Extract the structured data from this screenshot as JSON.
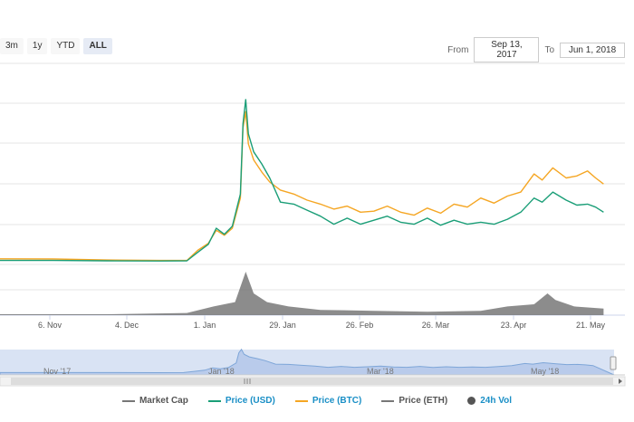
{
  "zoom": {
    "buttons": [
      "3m",
      "1y",
      "YTD",
      "ALL"
    ],
    "active": "ALL"
  },
  "range": {
    "from_label": "From",
    "from_value": "Sep 13, 2017",
    "to_label": "To",
    "to_value": "Jun 1, 2018"
  },
  "navigator": {
    "labels": [
      "Nov '17",
      "Jan '18",
      "Mar '18",
      "May '18"
    ]
  },
  "colors": {
    "usd": "#1a9e77",
    "btc": "#f5a623",
    "volume": "#555555",
    "navigator_fill": "#c9d7ef",
    "navigator_line": "#7ea6d8"
  },
  "chart_data": {
    "type": "line",
    "x_tick_labels": [
      "6. Nov",
      "4. Dec",
      "1. Jan",
      "29. Jan",
      "26. Feb",
      "26. Mar",
      "23. Apr",
      "21. May"
    ],
    "x_range": [
      "2017-10-10",
      "2018-06-01"
    ],
    "series": [
      {
        "name": "Price (USD)",
        "points": [
          [
            0,
            0.2
          ],
          [
            20,
            0.2
          ],
          [
            40,
            0.18
          ],
          [
            60,
            0.17
          ],
          [
            70,
            0.18
          ],
          [
            74,
            0.6
          ],
          [
            78,
            1.0
          ],
          [
            81,
            1.8
          ],
          [
            84,
            1.5
          ],
          [
            87,
            1.9
          ],
          [
            90,
            3.5
          ],
          [
            91,
            7.0
          ],
          [
            92,
            8.2
          ],
          [
            93,
            6.5
          ],
          [
            95,
            5.6
          ],
          [
            98,
            5.0
          ],
          [
            101,
            4.3
          ],
          [
            105,
            3.1
          ],
          [
            110,
            3.0
          ],
          [
            115,
            2.7
          ],
          [
            120,
            2.4
          ],
          [
            125,
            2.0
          ],
          [
            130,
            2.3
          ],
          [
            135,
            2.0
          ],
          [
            140,
            2.2
          ],
          [
            145,
            2.4
          ],
          [
            150,
            2.1
          ],
          [
            155,
            2.0
          ],
          [
            160,
            2.3
          ],
          [
            165,
            1.95
          ],
          [
            170,
            2.2
          ],
          [
            175,
            2.0
          ],
          [
            180,
            2.1
          ],
          [
            185,
            2.0
          ],
          [
            190,
            2.25
          ],
          [
            195,
            2.6
          ],
          [
            200,
            3.3
          ],
          [
            203,
            3.1
          ],
          [
            207,
            3.6
          ],
          [
            212,
            3.2
          ],
          [
            216,
            2.95
          ],
          [
            220,
            3.0
          ],
          [
            223,
            2.85
          ],
          [
            226,
            2.6
          ]
        ]
      },
      {
        "name": "Price (BTC)",
        "points": [
          [
            0,
            0.28
          ],
          [
            20,
            0.27
          ],
          [
            40,
            0.22
          ],
          [
            60,
            0.2
          ],
          [
            70,
            0.2
          ],
          [
            74,
            0.7
          ],
          [
            78,
            1.05
          ],
          [
            81,
            1.7
          ],
          [
            84,
            1.45
          ],
          [
            87,
            1.8
          ],
          [
            90,
            3.3
          ],
          [
            91,
            6.8
          ],
          [
            92,
            7.6
          ],
          [
            93,
            6.0
          ],
          [
            95,
            5.2
          ],
          [
            98,
            4.6
          ],
          [
            101,
            4.1
          ],
          [
            105,
            3.7
          ],
          [
            110,
            3.5
          ],
          [
            115,
            3.2
          ],
          [
            120,
            3.0
          ],
          [
            125,
            2.75
          ],
          [
            130,
            2.9
          ],
          [
            135,
            2.6
          ],
          [
            140,
            2.65
          ],
          [
            145,
            2.9
          ],
          [
            150,
            2.6
          ],
          [
            155,
            2.45
          ],
          [
            160,
            2.8
          ],
          [
            165,
            2.55
          ],
          [
            170,
            3.0
          ],
          [
            175,
            2.85
          ],
          [
            180,
            3.3
          ],
          [
            185,
            3.05
          ],
          [
            190,
            3.4
          ],
          [
            195,
            3.6
          ],
          [
            200,
            4.5
          ],
          [
            203,
            4.2
          ],
          [
            207,
            4.8
          ],
          [
            212,
            4.3
          ],
          [
            216,
            4.4
          ],
          [
            220,
            4.65
          ],
          [
            223,
            4.3
          ],
          [
            226,
            4.0
          ]
        ]
      }
    ],
    "volume": {
      "name": "24h Vol",
      "points": [
        [
          0,
          0.02
        ],
        [
          40,
          0.02
        ],
        [
          70,
          0.05
        ],
        [
          80,
          0.2
        ],
        [
          88,
          0.3
        ],
        [
          92,
          1.0
        ],
        [
          95,
          0.5
        ],
        [
          100,
          0.3
        ],
        [
          108,
          0.2
        ],
        [
          120,
          0.12
        ],
        [
          140,
          0.1
        ],
        [
          160,
          0.08
        ],
        [
          180,
          0.1
        ],
        [
          190,
          0.2
        ],
        [
          200,
          0.25
        ],
        [
          205,
          0.5
        ],
        [
          208,
          0.35
        ],
        [
          215,
          0.2
        ],
        [
          226,
          0.15
        ]
      ]
    },
    "legend": [
      {
        "label": "Market Cap",
        "color": "#777777",
        "shape": "line"
      },
      {
        "label": "Price (USD)",
        "color": "#1a9e77",
        "shape": "line"
      },
      {
        "label": "Price (BTC)",
        "color": "#f5a623",
        "shape": "line"
      },
      {
        "label": "Price (ETH)",
        "color": "#777777",
        "shape": "line"
      },
      {
        "label": "24h Vol",
        "color": "#555555",
        "shape": "dot"
      }
    ],
    "y_range": [
      0,
      10
    ],
    "grid": true,
    "legend_position": "bottom"
  }
}
